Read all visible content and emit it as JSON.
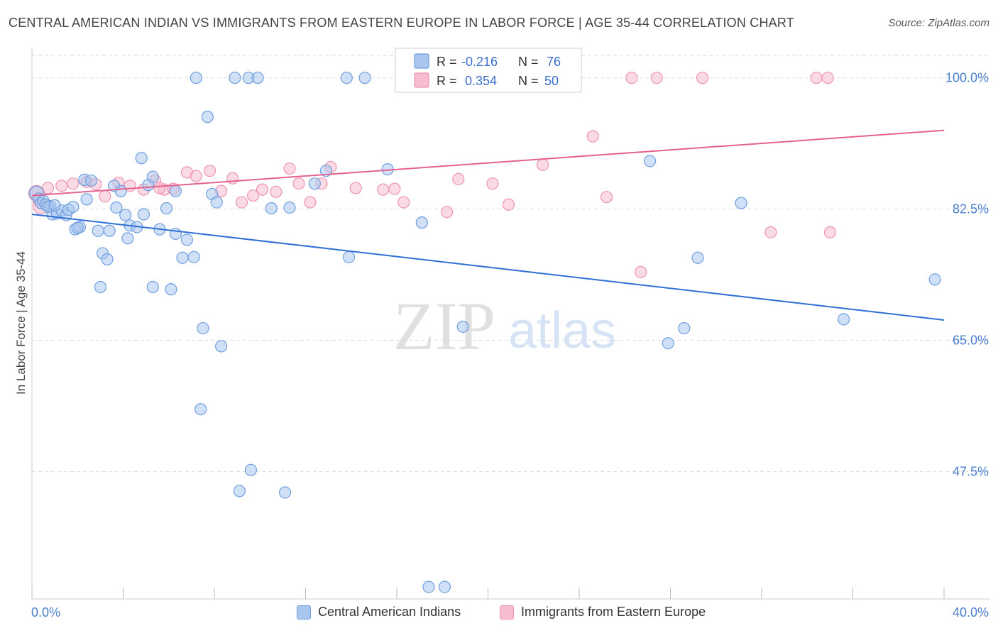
{
  "title": "CENTRAL AMERICAN INDIAN VS IMMIGRANTS FROM EASTERN EUROPE IN LABOR FORCE | AGE 35-44 CORRELATION CHART",
  "source": "Source: ZipAtlas.com",
  "watermark": {
    "zip": "ZIP",
    "atlas": "atlas"
  },
  "colors": {
    "blue_fill": "#a9c6ee",
    "blue_stroke": "#6f9fde",
    "blue_line": "#2f6fd6",
    "pink_fill": "#f6bcd0",
    "pink_stroke": "#ee93b3",
    "pink_line": "#e5628f",
    "grid": "#dddddd",
    "axis_text": "#4a7fd0"
  },
  "legend": {
    "r_label": "R =",
    "n_label": "N =",
    "blue": {
      "r": "-0.216",
      "n": "76"
    },
    "pink": {
      "r": "0.354",
      "n": "50"
    }
  },
  "chart_data": {
    "type": "scatter",
    "title": "CENTRAL AMERICAN INDIAN VS IMMIGRANTS FROM EASTERN EUROPE IN LABOR FORCE | AGE 35-44 CORRELATION CHART",
    "xlabel": "",
    "ylabel": "In Labor Force | Age 35-44",
    "xlim": [
      0,
      40
    ],
    "ylim": [
      30.5,
      103
    ],
    "x_tick_labels": [
      "0.0%",
      "40.0%"
    ],
    "y_ticks": [
      47.5,
      65.0,
      82.5,
      100.0
    ],
    "y_tick_labels": [
      "47.5%",
      "65.0%",
      "82.5%",
      "100.0%"
    ],
    "grid": true,
    "legend_position": "top-center",
    "series": [
      {
        "name": "Central American Indians",
        "color": "#a9c6ee",
        "r": -0.216,
        "n": 76,
        "trend": {
          "x": [
            0,
            40
          ],
          "y": [
            81.8,
            67.7
          ]
        },
        "points": [
          [
            0.2,
            84.6
          ],
          [
            0.3,
            83.9
          ],
          [
            0.4,
            83.3
          ],
          [
            0.5,
            83.6
          ],
          [
            0.6,
            83.1
          ],
          [
            0.8,
            82.9
          ],
          [
            0.9,
            81.8
          ],
          [
            1.1,
            81.9
          ],
          [
            1.3,
            82.3
          ],
          [
            1.5,
            81.7
          ],
          [
            1.6,
            82.4
          ],
          [
            1.8,
            82.8
          ],
          [
            1.9,
            79.8
          ],
          [
            2.1,
            80.1
          ],
          [
            2.4,
            83.8
          ],
          [
            2.3,
            86.4
          ],
          [
            2.6,
            86.3
          ],
          [
            2.9,
            79.6
          ],
          [
            3.1,
            76.6
          ],
          [
            3.3,
            75.8
          ],
          [
            3.4,
            79.6
          ],
          [
            3.7,
            82.7
          ],
          [
            3.6,
            85.6
          ],
          [
            3.9,
            84.9
          ],
          [
            4.1,
            81.7
          ],
          [
            4.2,
            78.6
          ],
          [
            4.3,
            80.3
          ],
          [
            4.6,
            80.1
          ],
          [
            4.8,
            89.3
          ],
          [
            4.9,
            81.8
          ],
          [
            5.1,
            85.7
          ],
          [
            5.3,
            86.8
          ],
          [
            5.6,
            79.8
          ],
          [
            5.9,
            82.6
          ],
          [
            6.1,
            71.8
          ],
          [
            6.3,
            84.9
          ],
          [
            6.3,
            79.2
          ],
          [
            6.6,
            76.0
          ],
          [
            6.8,
            78.4
          ],
          [
            7.1,
            76.1
          ],
          [
            7.2,
            100.0
          ],
          [
            7.5,
            66.6
          ],
          [
            7.7,
            94.8
          ],
          [
            7.9,
            84.5
          ],
          [
            8.1,
            83.4
          ],
          [
            8.3,
            64.2
          ],
          [
            7.4,
            55.8
          ],
          [
            8.9,
            100.0
          ],
          [
            9.5,
            100.0
          ],
          [
            9.9,
            100.0
          ],
          [
            9.6,
            47.7
          ],
          [
            9.1,
            44.9
          ],
          [
            10.5,
            82.6
          ],
          [
            11.3,
            82.7
          ],
          [
            11.1,
            44.7
          ],
          [
            12.4,
            85.9
          ],
          [
            12.9,
            87.6
          ],
          [
            13.8,
            100.0
          ],
          [
            14.6,
            100.0
          ],
          [
            13.9,
            76.1
          ],
          [
            15.6,
            87.8
          ],
          [
            17.1,
            80.7
          ],
          [
            17.4,
            32.1
          ],
          [
            18.1,
            32.1
          ],
          [
            18.9,
            66.8
          ],
          [
            22.6,
            100.0
          ],
          [
            27.1,
            88.9
          ],
          [
            27.9,
            64.6
          ],
          [
            28.6,
            66.6
          ],
          [
            29.2,
            76.0
          ],
          [
            31.1,
            83.3
          ],
          [
            35.6,
            67.8
          ],
          [
            39.6,
            73.1
          ],
          [
            0.7,
            82.8
          ],
          [
            1.0,
            83.0
          ],
          [
            2.0,
            80.0
          ],
          [
            3.0,
            72.1
          ],
          [
            5.3,
            72.1
          ]
        ]
      },
      {
        "name": "Immigrants from Eastern Europe",
        "color": "#f6bcd0",
        "r": 0.354,
        "n": 50,
        "trend": {
          "x": [
            0,
            40
          ],
          "y": [
            84.3,
            93.0
          ]
        },
        "points": [
          [
            0.3,
            83.6
          ],
          [
            0.4,
            82.9
          ],
          [
            0.7,
            85.3
          ],
          [
            1.3,
            85.6
          ],
          [
            1.8,
            85.9
          ],
          [
            2.4,
            86.1
          ],
          [
            2.8,
            85.8
          ],
          [
            3.2,
            84.2
          ],
          [
            3.8,
            86.0
          ],
          [
            4.3,
            85.6
          ],
          [
            4.9,
            85.1
          ],
          [
            5.4,
            86.3
          ],
          [
            5.8,
            85.1
          ],
          [
            6.2,
            85.2
          ],
          [
            6.8,
            87.4
          ],
          [
            7.2,
            86.9
          ],
          [
            7.8,
            87.6
          ],
          [
            8.3,
            84.9
          ],
          [
            8.8,
            86.6
          ],
          [
            9.2,
            83.4
          ],
          [
            9.7,
            84.3
          ],
          [
            10.1,
            85.1
          ],
          [
            10.7,
            84.8
          ],
          [
            11.3,
            87.9
          ],
          [
            11.7,
            85.9
          ],
          [
            12.2,
            83.4
          ],
          [
            12.7,
            85.9
          ],
          [
            13.1,
            88.1
          ],
          [
            14.2,
            85.3
          ],
          [
            15.4,
            85.1
          ],
          [
            15.9,
            85.2
          ],
          [
            16.3,
            83.4
          ],
          [
            17.4,
            100.0
          ],
          [
            18.2,
            82.1
          ],
          [
            18.7,
            86.5
          ],
          [
            20.2,
            85.9
          ],
          [
            20.9,
            83.1
          ],
          [
            22.4,
            88.4
          ],
          [
            24.6,
            92.2
          ],
          [
            25.2,
            84.1
          ],
          [
            26.3,
            100.0
          ],
          [
            26.7,
            74.1
          ],
          [
            27.4,
            100.0
          ],
          [
            29.4,
            100.0
          ],
          [
            32.4,
            79.4
          ],
          [
            34.4,
            100.0
          ],
          [
            34.9,
            100.0
          ],
          [
            35.0,
            79.4
          ],
          [
            0.2,
            84.6
          ],
          [
            5.6,
            85.3
          ]
        ]
      }
    ]
  }
}
